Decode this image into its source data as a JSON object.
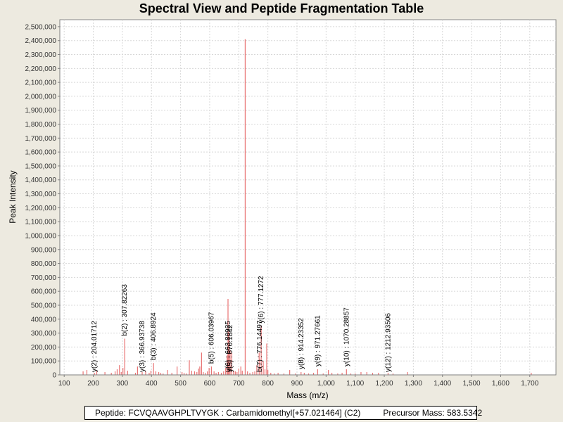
{
  "chart_data": {
    "type": "bar",
    "title": "Spectral View and Peptide Fragmentation Table",
    "xlabel": "Mass (m/z)",
    "ylabel": "Peak Intensity",
    "xlim": [
      85,
      1790
    ],
    "ylim": [
      0,
      2550000
    ],
    "x_ticks": [
      100,
      200,
      300,
      400,
      500,
      600,
      700,
      800,
      900,
      1000,
      1100,
      1200,
      1300,
      1400,
      1500,
      1600,
      1700
    ],
    "x_tick_labels": [
      "100",
      "200",
      "300",
      "400",
      "500",
      "600",
      "700",
      "800",
      "900",
      "1,000",
      "1,100",
      "1,200",
      "1,300",
      "1,400",
      "1,500",
      "1,600",
      "1,700"
    ],
    "y_ticks": [
      0,
      100000,
      200000,
      300000,
      400000,
      500000,
      600000,
      700000,
      800000,
      900000,
      1000000,
      1100000,
      1200000,
      1300000,
      1400000,
      1500000,
      1600000,
      1700000,
      1800000,
      1900000,
      2000000,
      2100000,
      2200000,
      2300000,
      2400000,
      2500000
    ],
    "y_tick_labels": [
      "0",
      "100,000",
      "200,000",
      "300,000",
      "400,000",
      "500,000",
      "600,000",
      "700,000",
      "800,000",
      "900,000",
      "1,000,000",
      "1,100,000",
      "1,200,000",
      "1,300,000",
      "1,400,000",
      "1,500,000",
      "1,600,000",
      "1,700,000",
      "1,800,000",
      "1,900,000",
      "2,000,000",
      "2,100,000",
      "2,200,000",
      "2,300,000",
      "2,400,000",
      "2,500,000"
    ],
    "grid": true,
    "peak_color": "#e87272",
    "series": [
      {
        "name": "peaks",
        "x": [
          165,
          178,
          204,
          212,
          240,
          262,
          275,
          282,
          290,
          296,
          302,
          308,
          318,
          345,
          352,
          368,
          380,
          392,
          398,
          407,
          415,
          425,
          432,
          440,
          455,
          470,
          488,
          505,
          512,
          520,
          530,
          538,
          548,
          556,
          562,
          566,
          572,
          578,
          585,
          592,
          598,
          606,
          615,
          622,
          630,
          640,
          648,
          655,
          660,
          663,
          666,
          670,
          676,
          682,
          688,
          694,
          700,
          707,
          712,
          722,
          730,
          738,
          748,
          755,
          762,
          770,
          777,
          784,
          790,
          796,
          800,
          810,
          822,
          835,
          855,
          875,
          895,
          914,
          925,
          940,
          957,
          971,
          990,
          1008,
          1020,
          1040,
          1055,
          1070,
          1085,
          1100,
          1120,
          1140,
          1160,
          1180,
          1213,
          1230,
          1280,
          1705
        ],
        "y": [
          25000,
          35000,
          15000,
          30000,
          20000,
          15000,
          25000,
          40000,
          70000,
          20000,
          50000,
          260000,
          30000,
          15000,
          60000,
          20000,
          25000,
          15000,
          30000,
          85000,
          25000,
          20000,
          15000,
          10000,
          35000,
          15000,
          60000,
          20000,
          15000,
          10000,
          105000,
          30000,
          25000,
          20000,
          45000,
          60000,
          160000,
          20000,
          15000,
          25000,
          50000,
          60000,
          25000,
          15000,
          20000,
          15000,
          25000,
          50000,
          140000,
          545000,
          310000,
          180000,
          160000,
          30000,
          25000,
          20000,
          45000,
          60000,
          30000,
          2410000,
          25000,
          15000,
          20000,
          25000,
          70000,
          160000,
          350000,
          100000,
          40000,
          225000,
          35000,
          15000,
          10000,
          15000,
          10000,
          35000,
          10000,
          20000,
          15000,
          10000,
          15000,
          40000,
          10000,
          35000,
          15000,
          10000,
          15000,
          40000,
          10000,
          10000,
          20000,
          20000,
          15000,
          15000,
          15000,
          10000,
          20000,
          15000
        ]
      }
    ],
    "annotations": [
      {
        "text": "y(2) : 204.01712",
        "x": 204,
        "base": 0
      },
      {
        "text": "b(2) : 307.82263",
        "x": 308,
        "base": 260000
      },
      {
        "text": "y(3) : 366.93738",
        "x": 368,
        "base": 0
      },
      {
        "text": "b(3) : 406.8924",
        "x": 407,
        "base": 85000
      },
      {
        "text": "b(5) : 606.03967",
        "x": 606,
        "base": 60000
      },
      {
        "text": "y(6) : 663.80925",
        "x": 663,
        "base": 0
      },
      {
        "text": "y(5) : 670.1842",
        "x": 670,
        "base": 0
      },
      {
        "text": "y(6) : 777.1272",
        "x": 777,
        "base": 350000
      },
      {
        "text": "b(7) : 776.14497",
        "x": 772,
        "base": 0
      },
      {
        "text": "y(8) : 914.23352",
        "x": 914,
        "base": 20000
      },
      {
        "text": "y(9) : 971.27661",
        "x": 971,
        "base": 40000
      },
      {
        "text": "y(10) : 1070.28857",
        "x": 1070,
        "base": 40000
      },
      {
        "text": "y(12) : 1212.93506",
        "x": 1213,
        "base": 0
      }
    ]
  },
  "info": {
    "peptide": "Peptide: FCVQAAVGHPLTVYGK : Carbamidomethyl[+57.021464] (C2)",
    "precursor": "Precursor Mass: 583.5342"
  }
}
